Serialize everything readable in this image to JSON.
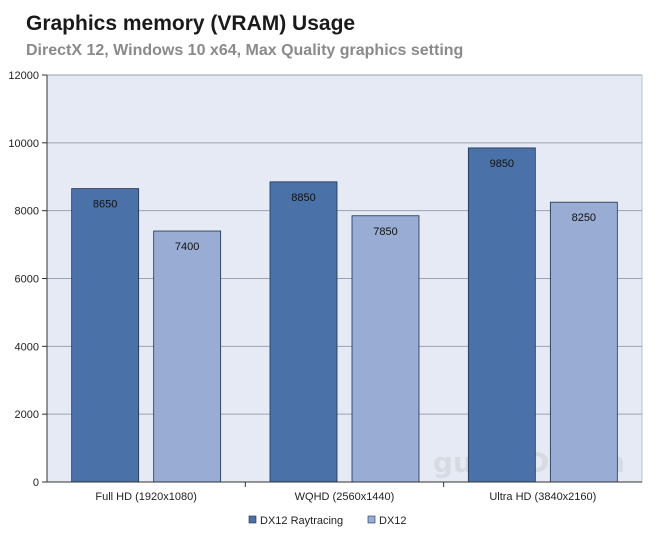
{
  "chart_data": {
    "type": "bar",
    "title": "Graphics memory (VRAM) Usage",
    "subtitle": "DirectX 12, Windows 10 x64, Max Quality graphics setting",
    "categories": [
      "Full HD (1920x1080)",
      "WQHD (2560x1440)",
      "Ultra HD (3840x2160)"
    ],
    "series": [
      {
        "name": "DX12 Raytracing",
        "values": [
          8650,
          8850,
          9850
        ],
        "color": "#4a72a8"
      },
      {
        "name": "DX12",
        "values": [
          7400,
          7850,
          8250
        ],
        "color": "#98acd4"
      }
    ],
    "ylim": [
      0,
      12000
    ],
    "yticks": [
      "0",
      "2000",
      "4000",
      "6000",
      "8000",
      "10000",
      "12000"
    ],
    "grid": true,
    "legend_position": "bottom",
    "watermark": "guru3D.com"
  },
  "colors": {
    "plot_background": "#e6eaf4",
    "axis": "#333333"
  }
}
